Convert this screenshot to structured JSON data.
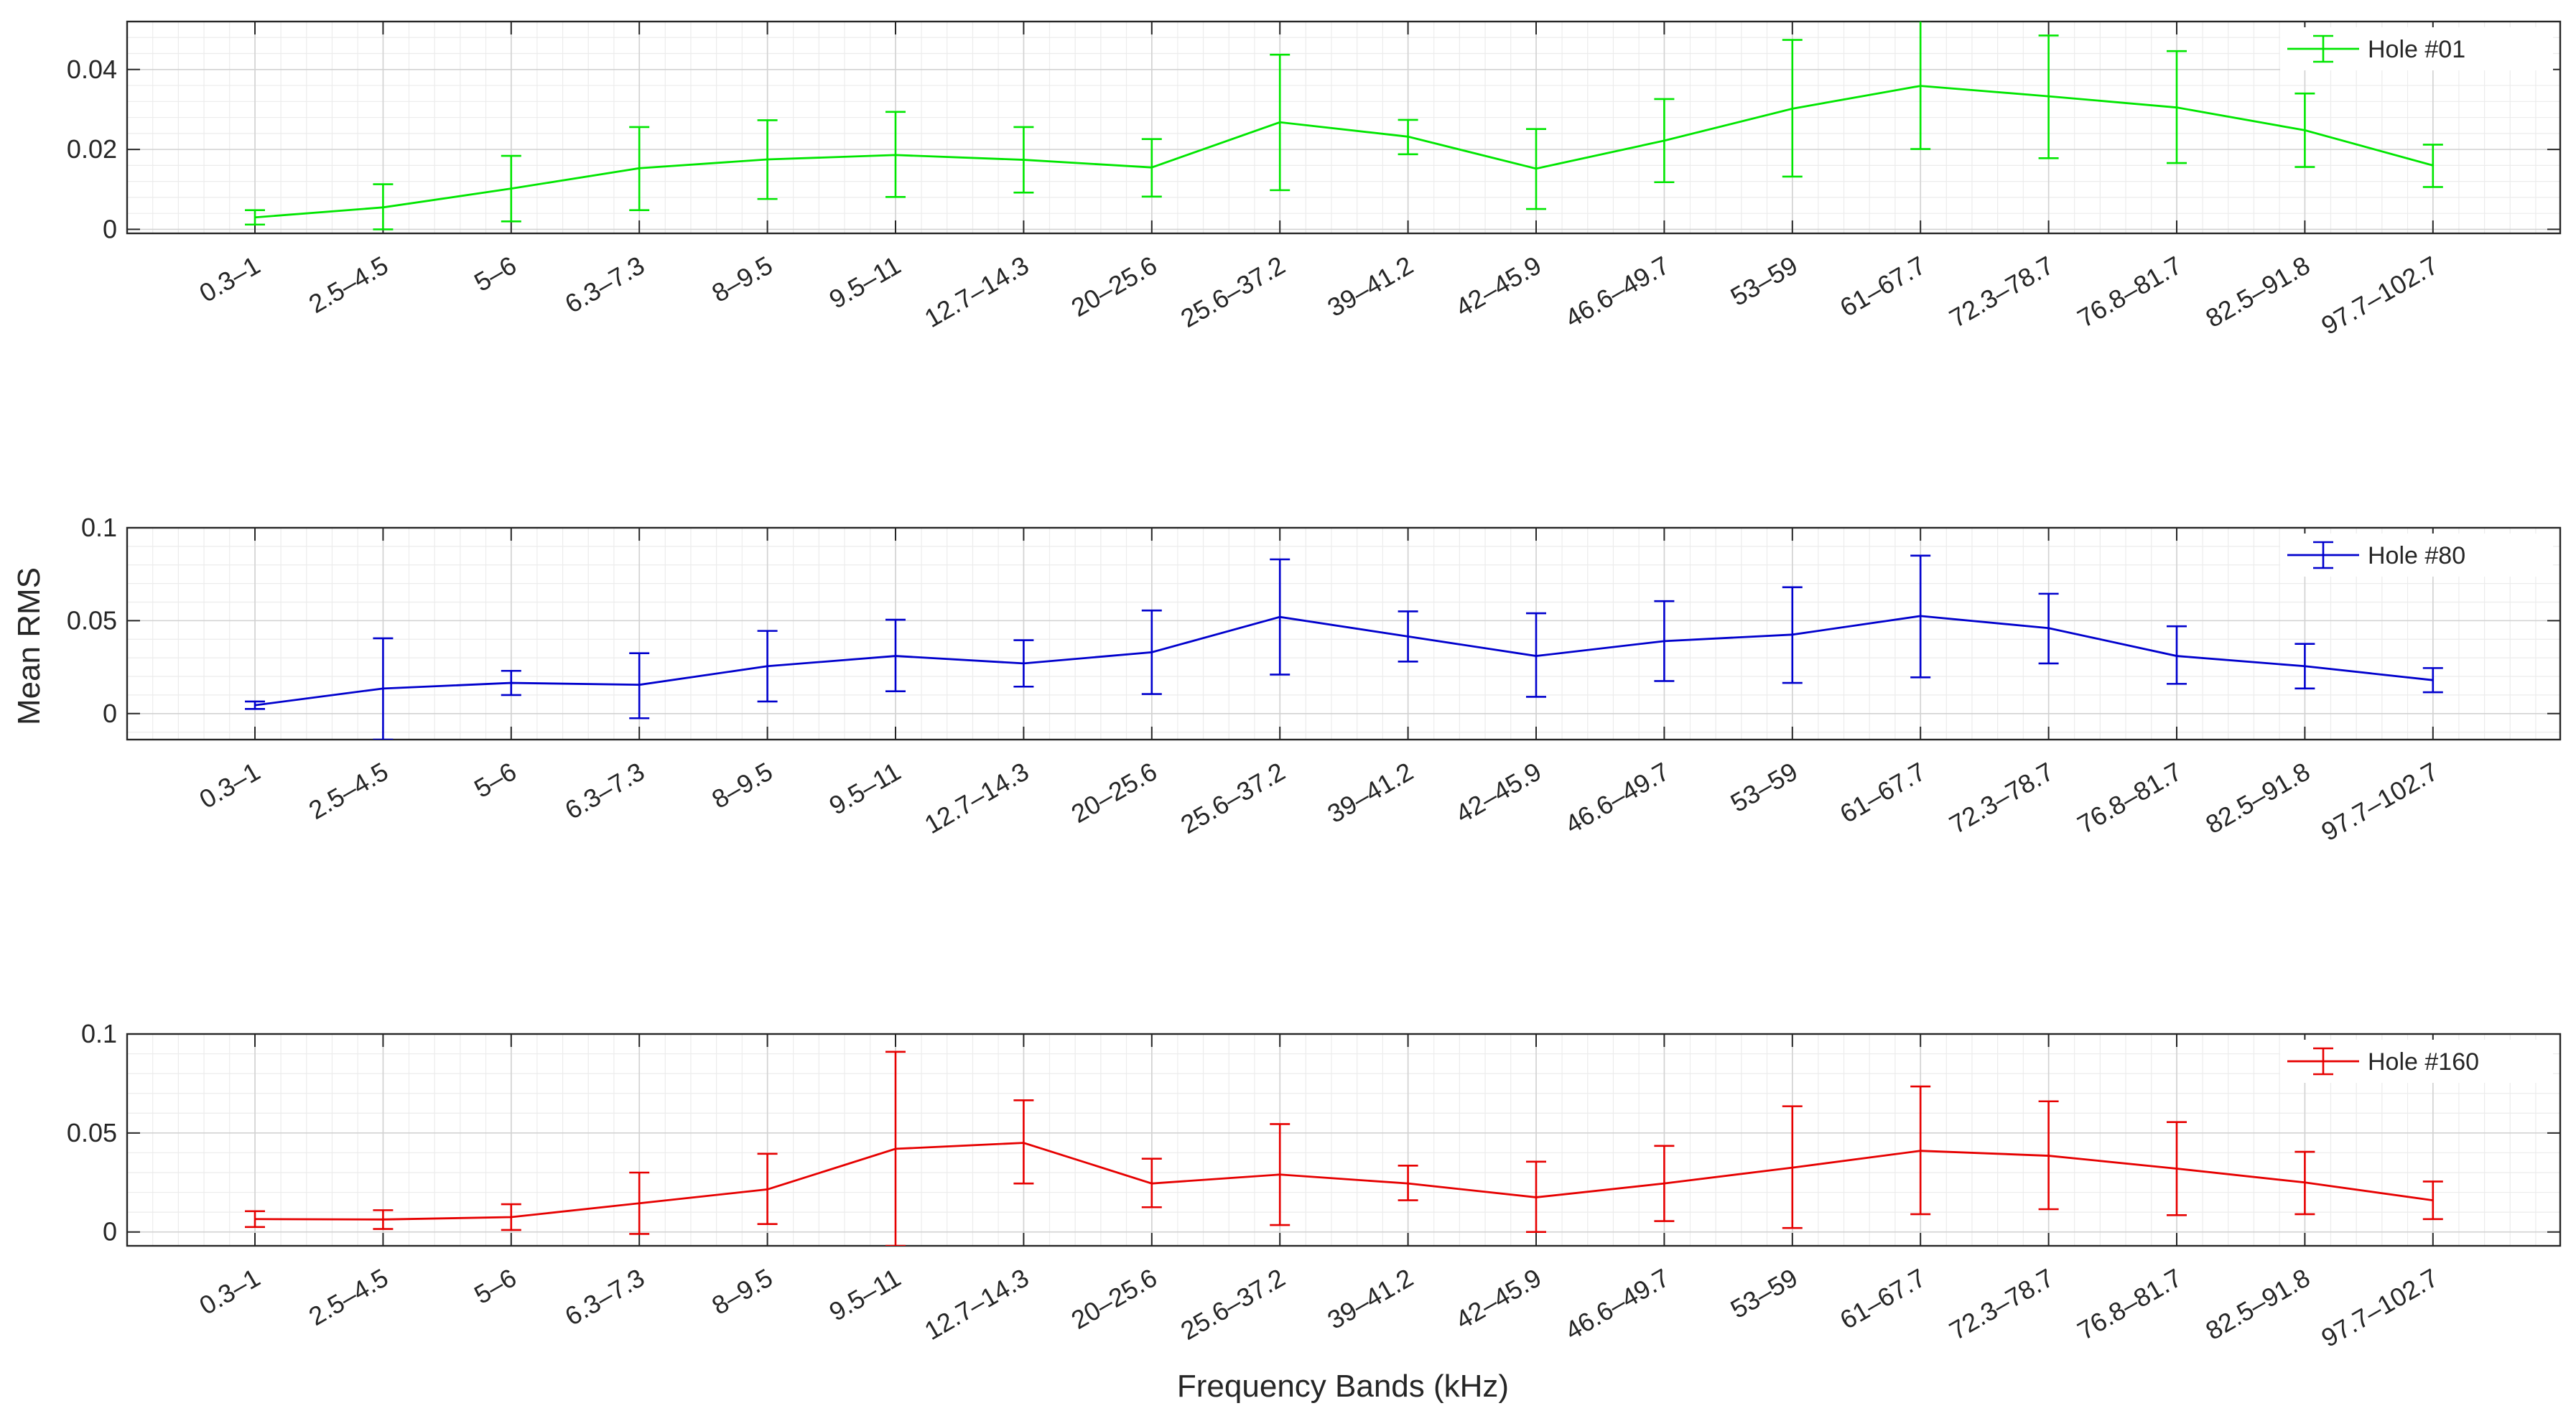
{
  "chart_data": {
    "type": "line",
    "xlabel": "Frequency Bands (kHz)",
    "ylabel": "Mean RMS",
    "grid": true,
    "error_bars": true,
    "categories": [
      "0.3–1",
      "2.5–4.5",
      "5–6",
      "6.3–7.3",
      "8–9.5",
      "9.5–11",
      "12.7–14.3",
      "20–25.6",
      "25.6–37.2",
      "39–41.2",
      "42–45.9",
      "46.6–49.7",
      "53–59",
      "61–67.7",
      "72.3–78.7",
      "76.8–81.7",
      "82.5–91.8",
      "97.7–102.7"
    ],
    "panels": [
      {
        "ylim": [
          -0.001,
          0.052
        ],
        "yticks": [
          0,
          0.02,
          0.04
        ],
        "ytick_labels": [
          "0",
          "0.02",
          "0.04"
        ],
        "legend_position": "top-right",
        "series": [
          {
            "name": "Hole #01",
            "color": "#00e600",
            "values": [
              0.003,
              0.0055,
              0.0102,
              0.0153,
              0.0175,
              0.0186,
              0.0174,
              0.0155,
              0.0268,
              0.0232,
              0.0152,
              0.0222,
              0.0302,
              0.0359,
              0.0333,
              0.0305,
              0.0248,
              0.016
            ],
            "err_low": [
              0.0012,
              0.0,
              0.002,
              0.0048,
              0.0076,
              0.0081,
              0.0092,
              0.0082,
              0.0098,
              0.0188,
              0.0051,
              0.0118,
              0.0132,
              0.0201,
              0.0178,
              0.0166,
              0.0156,
              0.0106
            ],
            "err_high": [
              0.0048,
              0.0113,
              0.0184,
              0.0256,
              0.0273,
              0.0294,
              0.0256,
              0.0226,
              0.0437,
              0.0274,
              0.0251,
              0.0326,
              0.0474,
              0.0522,
              0.0485,
              0.0446,
              0.034,
              0.0212
            ]
          }
        ]
      },
      {
        "ylim": [
          -0.014,
          0.1
        ],
        "yticks": [
          0,
          0.05,
          0.1
        ],
        "ytick_labels": [
          "0",
          "0.05",
          "0.1"
        ],
        "legend_position": "top-right",
        "series": [
          {
            "name": "Hole #80",
            "color": "#0000cd",
            "values": [
              0.0045,
              0.0135,
              0.0165,
              0.0155,
              0.0255,
              0.031,
              0.027,
              0.033,
              0.052,
              0.0415,
              0.031,
              0.039,
              0.0425,
              0.0525,
              0.046,
              0.031,
              0.0255,
              0.018
            ],
            "err_low": [
              0.0025,
              -0.014,
              0.01,
              -0.0025,
              0.0065,
              0.012,
              0.0145,
              0.0105,
              0.021,
              0.028,
              0.009,
              0.0175,
              0.0165,
              0.0195,
              0.027,
              0.016,
              0.0135,
              0.0115
            ],
            "err_high": [
              0.0065,
              0.0405,
              0.023,
              0.0325,
              0.0445,
              0.0505,
              0.0395,
              0.0555,
              0.083,
              0.055,
              0.054,
              0.0605,
              0.068,
              0.085,
              0.0645,
              0.047,
              0.0375,
              0.0245
            ]
          }
        ]
      },
      {
        "ylim": [
          -0.007,
          0.1
        ],
        "yticks": [
          0,
          0.05,
          0.1
        ],
        "ytick_labels": [
          "0",
          "0.05",
          "0.1"
        ],
        "legend_position": "top-right",
        "series": [
          {
            "name": "Hole #160",
            "color": "#e60000",
            "values": [
              0.0065,
              0.0063,
              0.0075,
              0.0145,
              0.0215,
              0.042,
              0.045,
              0.0245,
              0.029,
              0.0245,
              0.0175,
              0.0245,
              0.0325,
              0.041,
              0.0385,
              0.032,
              0.025,
              0.016
            ],
            "err_low": [
              0.0025,
              0.0015,
              0.001,
              -0.001,
              0.004,
              -0.007,
              0.0245,
              0.0125,
              0.0035,
              0.016,
              0.0,
              0.0055,
              0.002,
              0.009,
              0.0115,
              0.0085,
              0.009,
              0.0065
            ],
            "err_high": [
              0.0105,
              0.011,
              0.014,
              0.03,
              0.0395,
              0.091,
              0.0665,
              0.037,
              0.0545,
              0.0335,
              0.0355,
              0.0435,
              0.0635,
              0.0735,
              0.066,
              0.0555,
              0.0405,
              0.0255
            ]
          }
        ]
      }
    ]
  }
}
